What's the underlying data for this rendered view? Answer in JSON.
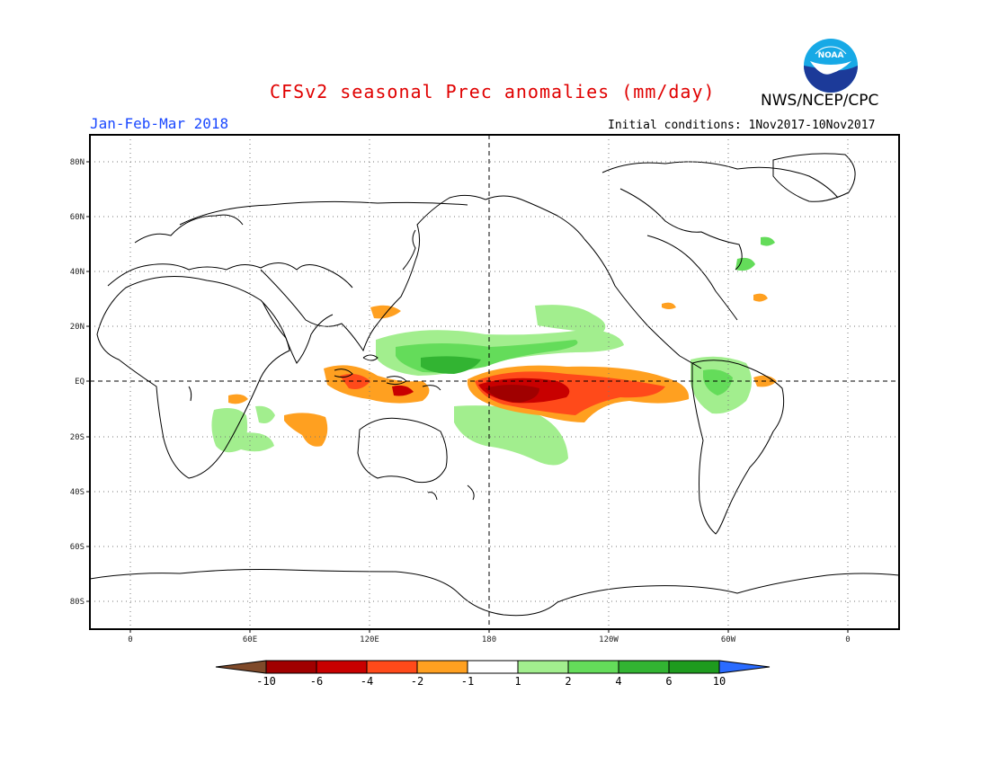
{
  "header": {
    "title": "CFSv2 seasonal Prec anomalies (mm/day)",
    "season": "Jan-Feb-Mar 2018",
    "initial_conditions": "Initial conditions: 1Nov2017-10Nov2017",
    "agency": "NWS/NCEP/CPC",
    "logo_text": "NOAA"
  },
  "axes": {
    "lat_labels": [
      "80N",
      "60N",
      "40N",
      "20N",
      "EQ",
      "20S",
      "40S",
      "60S",
      "80S"
    ],
    "lon_labels": [
      "0",
      "60E",
      "120E",
      "180",
      "120W",
      "60W",
      "0"
    ]
  },
  "colorbar": {
    "tick_labels": [
      "-10",
      "-6",
      "-4",
      "-2",
      "-1",
      "1",
      "2",
      "4",
      "6",
      "10"
    ],
    "colors": [
      "#7f4a2a",
      "#a00000",
      "#c80000",
      "#ff4a1a",
      "#ffa020",
      "#ffffff",
      "#a2ee8e",
      "#64dc5a",
      "#32b432",
      "#1e9b1e",
      "#2a6bff"
    ]
  },
  "anomalies": [
    {
      "region": "Central/Eastern Equatorial Pacific",
      "anomaly": "-6 to -10",
      "sign": "dry"
    },
    {
      "region": "Eastern Equatorial Pacific toward South America",
      "anomaly": "-1 to -4",
      "sign": "dry"
    },
    {
      "region": "Western Pacific / Philippine Sea",
      "anomaly": "+1 to +6",
      "sign": "wet"
    },
    {
      "region": "Maritime Continent",
      "anomaly": "-1 to -6",
      "sign": "dry"
    },
    {
      "region": "Southern Indian Ocean",
      "anomaly": "-1 to -2",
      "sign": "dry"
    },
    {
      "region": "Southeast Africa",
      "anomaly": "+1 to +2",
      "sign": "wet"
    },
    {
      "region": "South Pacific Convergence Zone",
      "anomaly": "+1 to +2",
      "sign": "wet"
    },
    {
      "region": "Northern South America",
      "anomaly": "+1 to +4",
      "sign": "wet"
    }
  ]
}
